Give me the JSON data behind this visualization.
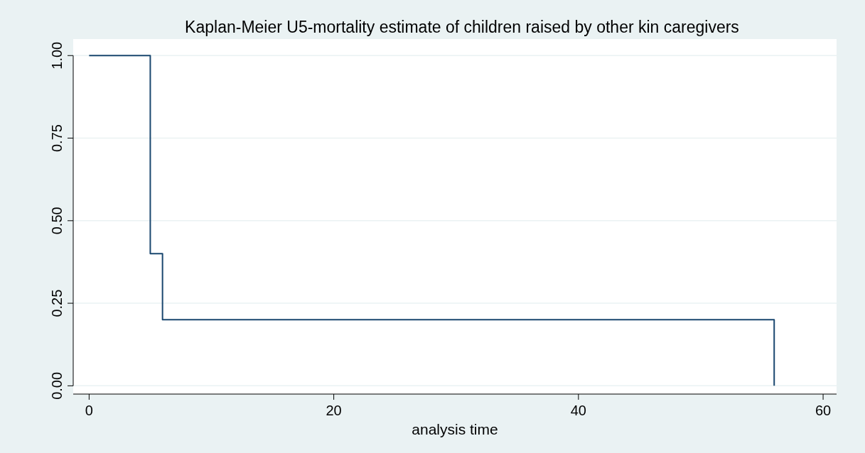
{
  "chart_data": {
    "type": "step",
    "title": "Kaplan-Meier U5-mortality estimate of children raised by other kin caregivers",
    "xlabel": "analysis time",
    "x": [
      0,
      5,
      6,
      56
    ],
    "series": [
      {
        "color": "#1a476f",
        "values": [
          1,
          0.4,
          0.2,
          0
        ]
      }
    ],
    "xlim": [
      -1.3,
      61.1
    ],
    "ylim": [
      -0.025,
      1.05
    ],
    "xticks": [
      0,
      20,
      40,
      60
    ],
    "yticks": [
      {
        "value": 0,
        "label": "0.00"
      },
      {
        "value": 0.25,
        "label": "0.25"
      },
      {
        "value": 0.5,
        "label": "0.50"
      },
      {
        "value": 0.75,
        "label": "0.75"
      },
      {
        "value": 1,
        "label": "1.00"
      }
    ],
    "grid": "y"
  }
}
